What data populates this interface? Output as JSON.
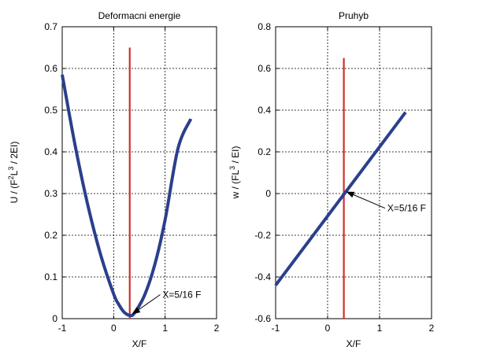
{
  "chart_data": [
    {
      "type": "line",
      "title": "Deformacni energie",
      "xlabel": "X/F",
      "ylabel": {
        "base": "U / (F",
        "sup1": "2",
        "mid": "L",
        "sup2": "3",
        "tail": " / 2EI)"
      },
      "xlim": [
        -1,
        2
      ],
      "ylim": [
        0,
        0.7
      ],
      "xticks": [
        -1,
        0,
        1,
        2
      ],
      "xtick_labels": [
        "-1",
        "0",
        "1",
        "2"
      ],
      "yticks": [
        0,
        0.1,
        0.2,
        0.3,
        0.4,
        0.5,
        0.6,
        0.7
      ],
      "ytick_labels": [
        "0",
        "0.1",
        "0.2",
        "0.3",
        "0.4",
        "0.5",
        "0.6",
        "0.7"
      ],
      "grid": true,
      "series": [
        {
          "color": "#2b3f8c",
          "x": [
            -1,
            -0.75,
            -0.5,
            -0.25,
            0,
            0.1,
            0.2,
            0.3125,
            0.4,
            0.6,
            0.8,
            1.0,
            1.25,
            1.5
          ],
          "y": [
            0.585,
            0.416,
            0.271,
            0.152,
            0.059,
            0.034,
            0.016,
            0.008,
            0.013,
            0.056,
            0.13,
            0.237,
            0.408,
            0.479
          ]
        }
      ],
      "vline": {
        "x": 0.3125,
        "y_top": 0.65,
        "color": "#d0302b"
      },
      "annotation": {
        "text": "X=5/16 F",
        "point": [
          0.3125,
          0.008
        ],
        "text_at": [
          0.95,
          0.05
        ]
      }
    },
    {
      "type": "line",
      "title": "Pruhyb",
      "xlabel": "X/F",
      "ylabel": {
        "base": "w / (FL",
        "sup1": "3",
        "tail": " / EI)"
      },
      "xlim": [
        -1,
        2
      ],
      "ylim": [
        -0.6,
        0.8
      ],
      "xticks": [
        -1,
        0,
        1,
        2
      ],
      "xtick_labels": [
        "-1",
        "0",
        "1",
        "2"
      ],
      "yticks": [
        -0.6,
        -0.4,
        -0.2,
        0,
        0.2,
        0.4,
        0.6,
        0.8
      ],
      "ytick_labels": [
        "-0.6",
        "-0.4",
        "-0.2",
        "0",
        "0.2",
        "0.4",
        "0.6",
        "0.8"
      ],
      "grid": true,
      "series": [
        {
          "color": "#2b3f8c",
          "x": [
            -1,
            1.5
          ],
          "y": [
            -0.44,
            0.39
          ]
        }
      ],
      "vline": {
        "x": 0.3125,
        "y_top": 0.65,
        "color": "#d0302b"
      },
      "annotation": {
        "text": "X=5/16 F",
        "point": [
          0.3125,
          0
        ],
        "text_at": [
          1.15,
          -0.085
        ]
      }
    }
  ]
}
